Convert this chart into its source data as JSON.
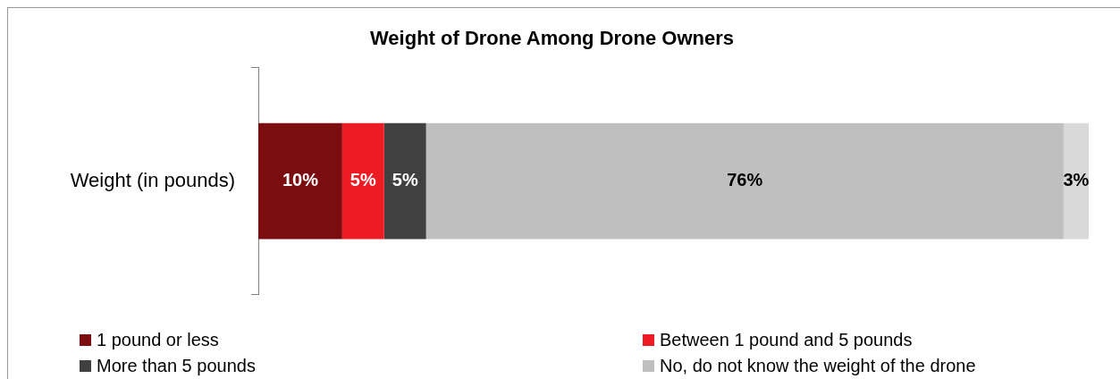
{
  "chart_data": {
    "type": "bar",
    "orientation": "horizontal",
    "stacked": true,
    "title": "Weight of Drone Among Drone Owners",
    "categories": [
      "Weight (in pounds)"
    ],
    "series": [
      {
        "name": "1 pound or less",
        "color": "#7b0c10",
        "values": [
          10
        ],
        "value_labels": [
          "10%"
        ]
      },
      {
        "name": "Between 1 pound and 5 pounds",
        "color": "#ed1c24",
        "values": [
          5
        ],
        "value_labels": [
          "5%"
        ]
      },
      {
        "name": "More than 5 pounds",
        "color": "#404040",
        "values": [
          5
        ],
        "value_labels": [
          "5%"
        ]
      },
      {
        "name": "No, do not know the weight of the drone",
        "color": "#bfbfbf",
        "values": [
          76
        ],
        "value_labels": [
          "76%"
        ]
      },
      {
        "color": "#d9d9d9",
        "values": [
          3
        ],
        "value_labels": [
          "3%"
        ]
      }
    ],
    "legend": "bottom",
    "grid": false
  }
}
